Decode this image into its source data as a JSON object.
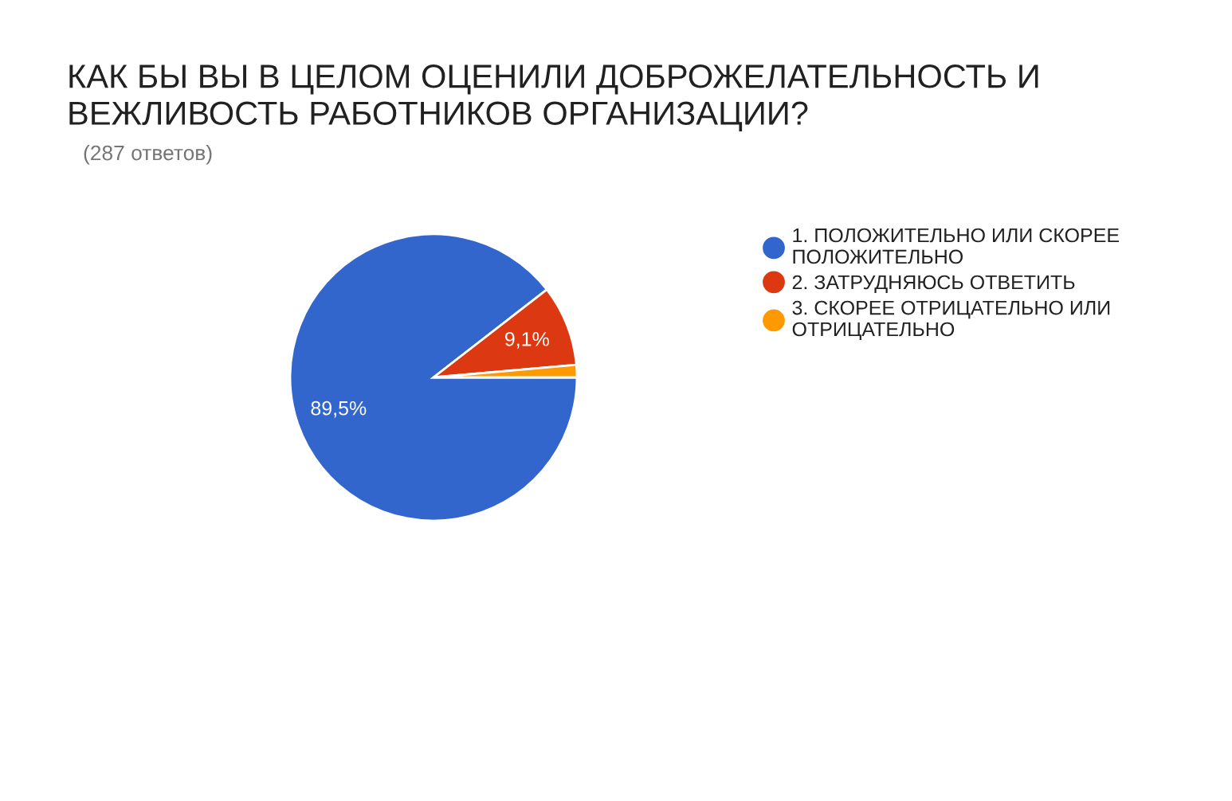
{
  "chart_data": {
    "type": "pie",
    "title": "КАК БЫ ВЫ В ЦЕЛОМ ОЦЕНИЛИ ДОБРОЖЕЛАТЕЛЬНОСТЬ И\nВЕЖЛИВОСТЬ РАБОТНИКОВ ОРГАНИЗАЦИИ?",
    "subtitle": "(287 ответов)",
    "categories": [
      "1. ПОЛОЖИТЕЛЬНО ИЛИ СКОРЕЕ\nПОЛОЖИТЕЛЬНО",
      "2. ЗАТРУДНЯЮСЬ ОТВЕТИТЬ",
      "3. СКОРЕЕ ОТРИЦАТЕЛЬНО ИЛИ\nОТРИЦАТЕЛЬНО"
    ],
    "values": [
      89.5,
      9.1,
      1.4
    ],
    "colors": [
      "#3366cc",
      "#dc3912",
      "#ff9900"
    ],
    "value_labels": [
      "89,5%",
      "9,1%",
      null
    ],
    "legend": "right"
  }
}
